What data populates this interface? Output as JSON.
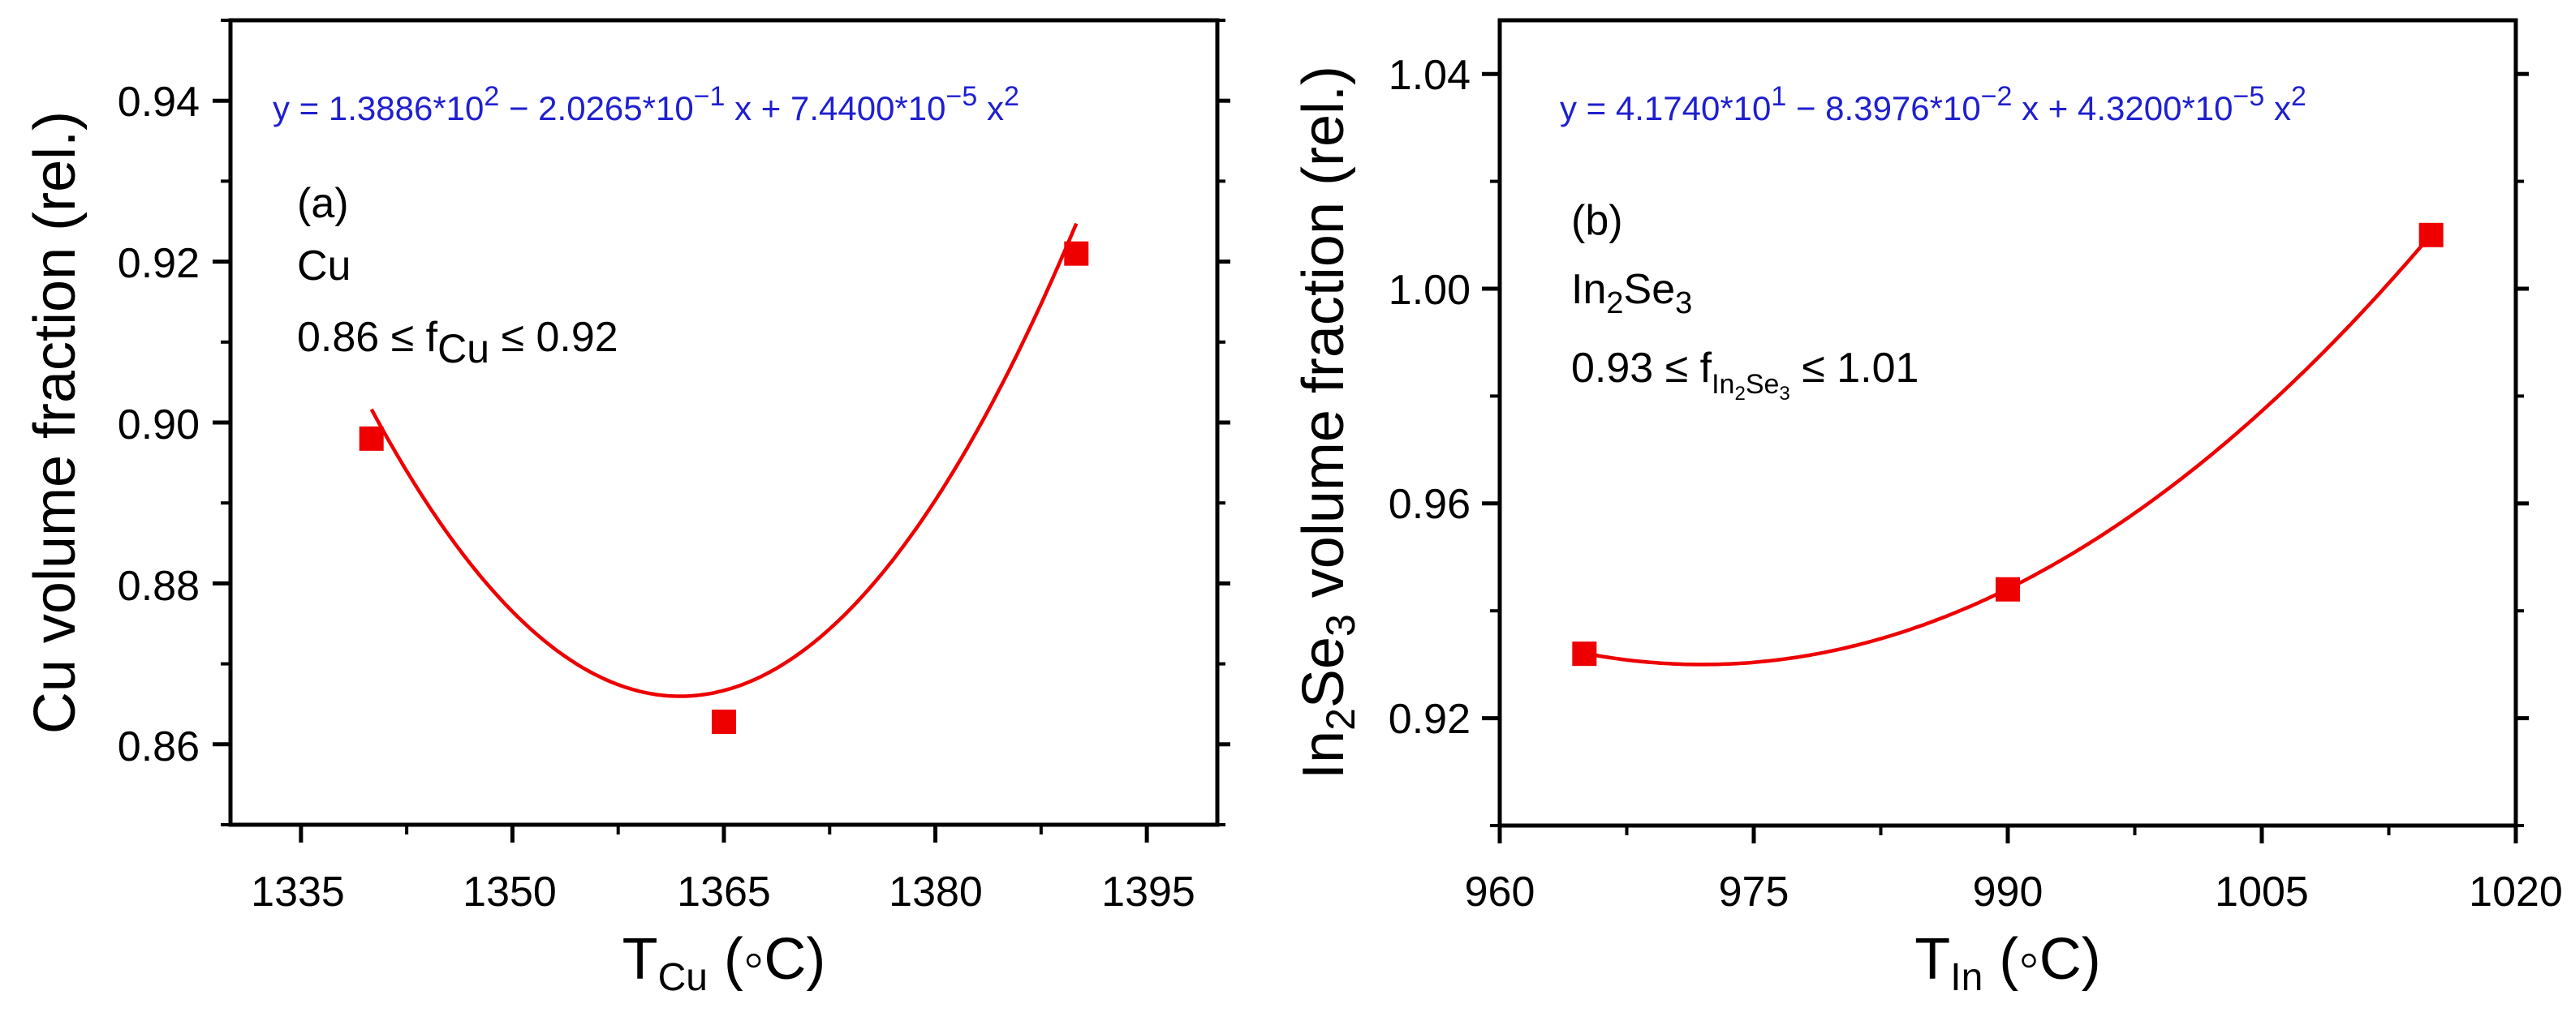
{
  "chart_data": [
    {
      "type": "scatter",
      "panel_label": "(a)",
      "material": "Cu",
      "range_text": {
        "prefix": "0.86 ≤ f",
        "sub": "Cu",
        "suffix": " ≤ 0.92"
      },
      "equation": {
        "a": "y = 1.3886*10",
        "a_exp": "2",
        "b": " − 2.0265*10",
        "b_exp": "−1",
        "c": " x + 7.4400*10",
        "c_exp": "−5",
        "d": " x",
        "d_exp": "2"
      },
      "xlabel": {
        "main": "T",
        "sub": "Cu",
        "unit": " (◦C)"
      },
      "ylabel": {
        "main": "Cu volume fraction (rel.)"
      },
      "xlim": [
        1330,
        1400
      ],
      "ylim": [
        0.85,
        0.95
      ],
      "xticks": [
        1335,
        1350,
        1365,
        1380,
        1395
      ],
      "yticks": [
        0.86,
        0.88,
        0.9,
        0.92,
        0.94
      ],
      "xtick_labels": [
        "1335",
        "1350",
        "1365",
        "1380",
        "1395"
      ],
      "ytick_labels": [
        "0.86",
        "0.88",
        "0.90",
        "0.92",
        "0.94"
      ],
      "x": [
        1340,
        1365,
        1390
      ],
      "y": [
        0.898,
        0.8628,
        0.921
      ],
      "fit": {
        "c0": 138.86,
        "c1": -0.20265,
        "c2": 7.44e-05
      },
      "marker_color": "#ee0000",
      "fit_color": "#ee0000",
      "equation_color": "#1f1fd0"
    },
    {
      "type": "scatter",
      "panel_label": "(b)",
      "material": {
        "a": "In",
        "a_sub": "2",
        "b": "Se",
        "b_sub": "3"
      },
      "range_text": {
        "prefix": "0.93 ≤ f",
        "sub1": "In",
        "sub1_sub": "2",
        "sub2": "Se",
        "sub2_sub": "3",
        "suffix": " ≤ 1.01"
      },
      "equation": {
        "a": "y = 4.1740*10",
        "a_exp": "1",
        "b": " − 8.3976*10",
        "b_exp": "−2",
        "c": " x + 4.3200*10",
        "c_exp": "−5",
        "d": " x",
        "d_exp": "2"
      },
      "xlabel": {
        "main": "T",
        "sub": "In",
        "unit": " (◦C)"
      },
      "ylabel": {
        "a": "In",
        "a_sub": "2",
        "b": "Se",
        "b_sub": "3",
        "rest": " volume fraction (rel.)"
      },
      "xlim": [
        960,
        1020
      ],
      "ylim": [
        0.9,
        1.05
      ],
      "xticks": [
        960,
        975,
        990,
        1005,
        1020
      ],
      "yticks": [
        0.92,
        0.96,
        1.0,
        1.04
      ],
      "xtick_labels": [
        "960",
        "975",
        "990",
        "1005",
        "1020"
      ],
      "ytick_labels": [
        "0.92",
        "0.96",
        "1.00",
        "1.04"
      ],
      "x": [
        965,
        990,
        1015
      ],
      "y": [
        0.932,
        0.944,
        1.01
      ],
      "fit": {
        "c0": 41.74,
        "c1": -0.083976,
        "c2": 4.32e-05
      },
      "marker_color": "#ee0000",
      "fit_color": "#ee0000",
      "equation_color": "#1f1fd0"
    }
  ]
}
